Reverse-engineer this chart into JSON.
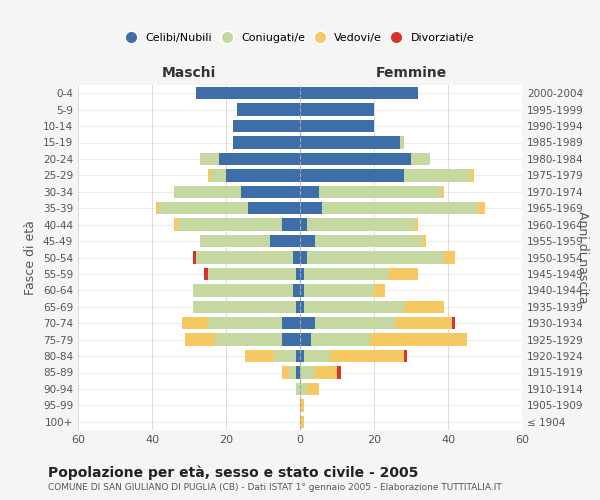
{
  "age_groups": [
    "100+",
    "95-99",
    "90-94",
    "85-89",
    "80-84",
    "75-79",
    "70-74",
    "65-69",
    "60-64",
    "55-59",
    "50-54",
    "45-49",
    "40-44",
    "35-39",
    "30-34",
    "25-29",
    "20-24",
    "15-19",
    "10-14",
    "5-9",
    "0-4"
  ],
  "birth_years": [
    "≤ 1904",
    "1905-1909",
    "1910-1914",
    "1915-1919",
    "1920-1924",
    "1925-1929",
    "1930-1934",
    "1935-1939",
    "1940-1944",
    "1945-1949",
    "1950-1954",
    "1955-1959",
    "1960-1964",
    "1965-1969",
    "1970-1974",
    "1975-1979",
    "1980-1984",
    "1985-1989",
    "1990-1994",
    "1995-1999",
    "2000-2004"
  ],
  "maschi": {
    "celibe": [
      0,
      0,
      0,
      1,
      1,
      5,
      5,
      1,
      2,
      1,
      2,
      8,
      5,
      14,
      16,
      20,
      22,
      18,
      18,
      17,
      28
    ],
    "coniugato": [
      0,
      0,
      1,
      2,
      6,
      18,
      20,
      28,
      27,
      24,
      26,
      19,
      28,
      24,
      18,
      4,
      5,
      0,
      0,
      0,
      0
    ],
    "vedovo": [
      0,
      0,
      0,
      2,
      8,
      8,
      7,
      0,
      0,
      0,
      0,
      0,
      1,
      1,
      0,
      1,
      0,
      0,
      0,
      0,
      0
    ],
    "divorziato": [
      0,
      0,
      0,
      0,
      0,
      0,
      0,
      0,
      0,
      1,
      1,
      0,
      0,
      0,
      0,
      0,
      0,
      0,
      0,
      0,
      0
    ]
  },
  "femmine": {
    "nubile": [
      0,
      0,
      0,
      0,
      1,
      3,
      4,
      1,
      1,
      1,
      2,
      4,
      2,
      6,
      5,
      28,
      30,
      27,
      20,
      20,
      32
    ],
    "coniugata": [
      0,
      0,
      2,
      4,
      7,
      16,
      22,
      27,
      19,
      23,
      37,
      29,
      29,
      42,
      33,
      18,
      5,
      1,
      0,
      0,
      0
    ],
    "vedova": [
      1,
      1,
      3,
      6,
      20,
      26,
      15,
      11,
      3,
      8,
      3,
      1,
      1,
      2,
      1,
      1,
      0,
      0,
      0,
      0,
      0
    ],
    "divorziata": [
      0,
      0,
      0,
      1,
      1,
      0,
      1,
      0,
      0,
      0,
      0,
      0,
      0,
      0,
      0,
      0,
      0,
      0,
      0,
      0,
      0
    ]
  },
  "colors": {
    "celibe": "#3d6ea8",
    "coniugato": "#c5d8a0",
    "vedovo": "#f5c862",
    "divorziato": "#d9312b"
  },
  "xlim": 60,
  "title": "Popolazione per età, sesso e stato civile - 2005",
  "subtitle": "COMUNE DI SAN GIULIANO DI PUGLIA (CB) - Dati ISTAT 1° gennaio 2005 - Elaborazione TUTTITALIA.IT",
  "xlabel_left": "Maschi",
  "xlabel_right": "Femmine",
  "ylabel_left": "Fasce di età",
  "ylabel_right": "Anni di nascita",
  "bg_color": "#f5f5f5",
  "plot_bg": "#ffffff",
  "legend_labels": [
    "Celibi/Nubili",
    "Coniugati/e",
    "Vedovi/e",
    "Divorziati/e"
  ]
}
